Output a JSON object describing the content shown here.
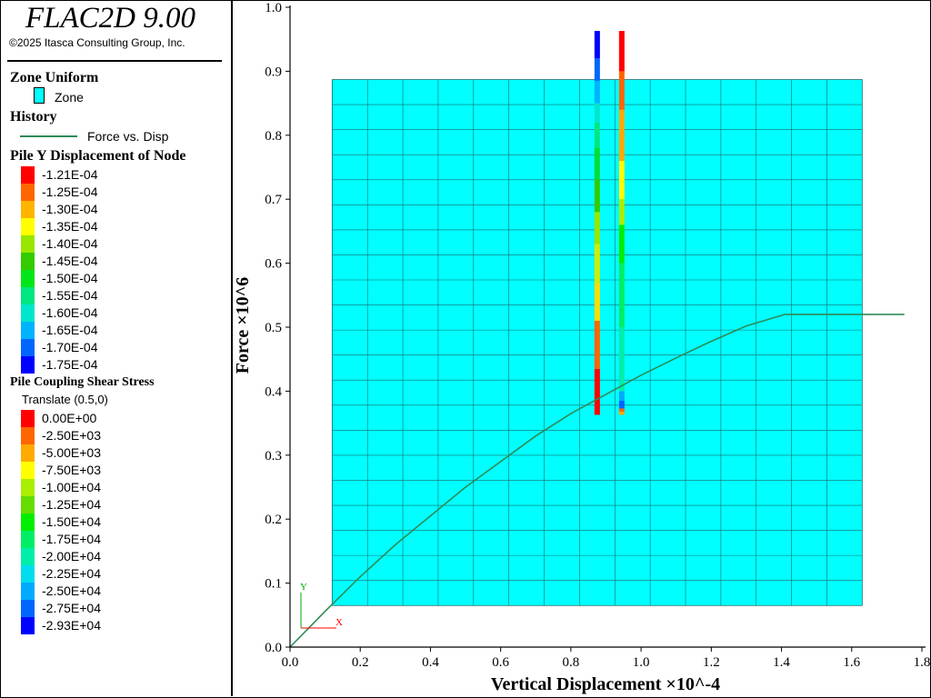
{
  "app": {
    "title": "FLAC2D 9.00",
    "copyright": "©2025 Itasca Consulting Group, Inc."
  },
  "legend": {
    "zone_header": "Zone Uniform",
    "zone_label": "Zone",
    "zone_color": "#00ffff",
    "history_header": "History",
    "history_label": "Force vs. Disp",
    "history_color": "#2e8b57",
    "pile_disp_header": "Pile Y Displacement of Node",
    "pile_disp_scale": [
      {
        "label": "-1.21E-04",
        "color": "#ff0000"
      },
      {
        "label": "-1.25E-04",
        "color": "#ff6600"
      },
      {
        "label": "-1.30E-04",
        "color": "#ffb400"
      },
      {
        "label": "-1.35E-04",
        "color": "#ffff00"
      },
      {
        "label": "-1.40E-04",
        "color": "#99e600"
      },
      {
        "label": "-1.45E-04",
        "color": "#33cc00"
      },
      {
        "label": "-1.50E-04",
        "color": "#00e619"
      },
      {
        "label": "-1.55E-04",
        "color": "#00e680"
      },
      {
        "label": "-1.60E-04",
        "color": "#00e6cc"
      },
      {
        "label": "-1.65E-04",
        "color": "#00b3ff"
      },
      {
        "label": "-1.70E-04",
        "color": "#0066ff"
      },
      {
        "label": "-1.75E-04",
        "color": "#0000ff"
      }
    ],
    "pile_shear_header": "Pile Coupling Shear Stress",
    "pile_shear_sub": "Translate (0.5,0)",
    "pile_shear_scale": [
      {
        "label": "0.00E+00",
        "color": "#ff0000"
      },
      {
        "label": "-2.50E+03",
        "color": "#ff6600"
      },
      {
        "label": "-5.00E+03",
        "color": "#ffaa00"
      },
      {
        "label": "-7.50E+03",
        "color": "#ffff00"
      },
      {
        "label": "-1.00E+04",
        "color": "#aaee00"
      },
      {
        "label": "-1.25E+04",
        "color": "#66dd00"
      },
      {
        "label": "-1.50E+04",
        "color": "#00ee00"
      },
      {
        "label": "-1.75E+04",
        "color": "#00ee66"
      },
      {
        "label": "-2.00E+04",
        "color": "#00eeaa"
      },
      {
        "label": "-2.25E+04",
        "color": "#00ddee"
      },
      {
        "label": "-2.50E+04",
        "color": "#00aaff"
      },
      {
        "label": "-2.75E+04",
        "color": "#0066ff"
      },
      {
        "label": "-2.93E+04",
        "color": "#0000ff"
      }
    ]
  },
  "chart_data": {
    "type": "line",
    "xlabel": "Vertical Displacement ×10^-4",
    "ylabel": "Force ×10^6",
    "xlim": [
      0,
      1.8
    ],
    "ylim": [
      0,
      1.0
    ],
    "xticks": [
      "0.0",
      "0.2",
      "0.4",
      "0.6",
      "0.8",
      "1.0",
      "1.2",
      "1.4",
      "1.6",
      "1.8"
    ],
    "yticks": [
      "0.0",
      "0.1",
      "0.2",
      "0.3",
      "0.4",
      "0.5",
      "0.6",
      "0.7",
      "0.8",
      "0.9",
      "1.0"
    ],
    "series": [
      {
        "name": "Force vs. Disp",
        "color": "#2e8b57",
        "x": [
          0.0,
          0.05,
          0.1,
          0.2,
          0.3,
          0.4,
          0.5,
          0.6,
          0.7,
          0.8,
          0.9,
          1.0,
          1.1,
          1.2,
          1.3,
          1.41,
          1.5,
          1.6,
          1.75
        ],
        "y": [
          0.0,
          0.028,
          0.056,
          0.11,
          0.16,
          0.205,
          0.25,
          0.29,
          0.33,
          0.365,
          0.395,
          0.425,
          0.452,
          0.478,
          0.502,
          0.52,
          0.52,
          0.52,
          0.52
        ]
      }
    ],
    "model": {
      "zone_grid": {
        "x_range": [
          0.12,
          1.63
        ],
        "y_range": [
          0.065,
          0.887
        ],
        "columns": 15,
        "rows": 21
      },
      "piles": [
        {
          "name": "pile-displacement",
          "x": 0.875,
          "y_range": [
            0.363,
            0.963
          ],
          "segments": [
            {
              "y0": 0.363,
              "y1": 0.435,
              "color": "#ff0000"
            },
            {
              "y0": 0.435,
              "y1": 0.51,
              "color": "#ff6600"
            },
            {
              "y0": 0.51,
              "y1": 0.57,
              "color": "#ffdd00"
            },
            {
              "y0": 0.57,
              "y1": 0.63,
              "color": "#ccee00"
            },
            {
              "y0": 0.63,
              "y1": 0.68,
              "color": "#99e600"
            },
            {
              "y0": 0.68,
              "y1": 0.73,
              "color": "#33cc00"
            },
            {
              "y0": 0.73,
              "y1": 0.78,
              "color": "#00dd33"
            },
            {
              "y0": 0.78,
              "y1": 0.82,
              "color": "#00e680"
            },
            {
              "y0": 0.82,
              "y1": 0.85,
              "color": "#00e6cc"
            },
            {
              "y0": 0.85,
              "y1": 0.885,
              "color": "#00b3ff"
            },
            {
              "y0": 0.885,
              "y1": 0.92,
              "color": "#0066ff"
            },
            {
              "y0": 0.92,
              "y1": 0.963,
              "color": "#0000ff"
            }
          ]
        },
        {
          "name": "pile-shear",
          "x": 0.945,
          "y_range": [
            0.363,
            0.963
          ],
          "segments": [
            {
              "y0": 0.363,
              "y1": 0.368,
              "color": "#ffaa00"
            },
            {
              "y0": 0.368,
              "y1": 0.373,
              "color": "#ff6600"
            },
            {
              "y0": 0.373,
              "y1": 0.385,
              "color": "#0066ff"
            },
            {
              "y0": 0.385,
              "y1": 0.4,
              "color": "#00aaff"
            },
            {
              "y0": 0.4,
              "y1": 0.5,
              "color": "#00eeaa"
            },
            {
              "y0": 0.5,
              "y1": 0.6,
              "color": "#00ee66"
            },
            {
              "y0": 0.6,
              "y1": 0.66,
              "color": "#00ee00"
            },
            {
              "y0": 0.66,
              "y1": 0.7,
              "color": "#aaee00"
            },
            {
              "y0": 0.7,
              "y1": 0.76,
              "color": "#ffff00"
            },
            {
              "y0": 0.76,
              "y1": 0.84,
              "color": "#ffaa00"
            },
            {
              "y0": 0.84,
              "y1": 0.9,
              "color": "#ff6600"
            },
            {
              "y0": 0.9,
              "y1": 0.963,
              "color": "#ff0000"
            }
          ]
        }
      ]
    },
    "axis_triad": {
      "x_label": "X",
      "y_label": "Y",
      "x_color": "#ff0000",
      "y_color": "#00aa00"
    }
  }
}
